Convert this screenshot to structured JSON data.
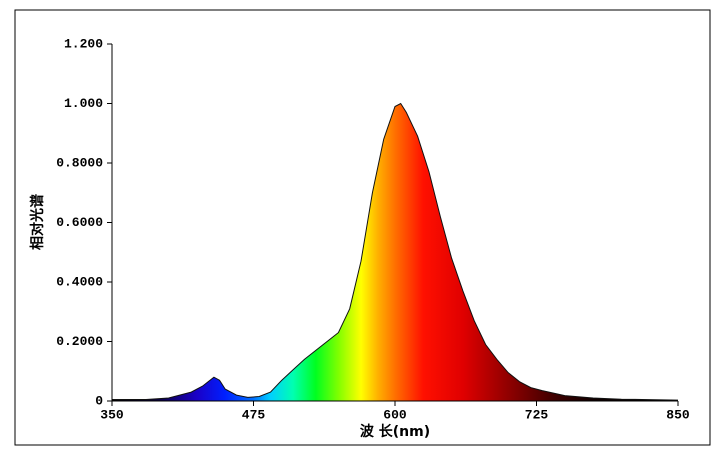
{
  "chart_data": {
    "type": "area",
    "xlabel": "波 长(nm)",
    "ylabel": "相对光谱",
    "x": [
      350,
      380,
      400,
      420,
      430,
      440,
      445,
      450,
      460,
      470,
      480,
      490,
      500,
      510,
      520,
      530,
      540,
      550,
      560,
      570,
      580,
      590,
      600,
      605,
      610,
      620,
      630,
      640,
      650,
      660,
      670,
      680,
      690,
      700,
      710,
      720,
      730,
      750,
      775,
      800,
      850
    ],
    "values": [
      0.005,
      0.005,
      0.01,
      0.03,
      0.05,
      0.08,
      0.07,
      0.04,
      0.02,
      0.012,
      0.015,
      0.03,
      0.07,
      0.105,
      0.14,
      0.17,
      0.2,
      0.23,
      0.31,
      0.47,
      0.7,
      0.88,
      0.99,
      1.0,
      0.97,
      0.89,
      0.77,
      0.62,
      0.48,
      0.37,
      0.27,
      0.19,
      0.14,
      0.095,
      0.065,
      0.045,
      0.035,
      0.018,
      0.01,
      0.006,
      0.003
    ],
    "xlim": [
      350,
      850
    ],
    "xticks": [
      350,
      475,
      600,
      725,
      850
    ],
    "ylim": [
      0,
      1.2
    ],
    "yticks": [
      0,
      {
        "value": 0.2,
        "label": "0.2000"
      },
      {
        "value": 0.4,
        "label": "0.4000"
      },
      {
        "value": 0.6,
        "label": "0.6000"
      },
      {
        "value": 0.8,
        "label": "0.8000"
      },
      {
        "value": 1,
        "label": "1.000"
      },
      {
        "value": 1.2,
        "label": "1.200"
      }
    ]
  }
}
